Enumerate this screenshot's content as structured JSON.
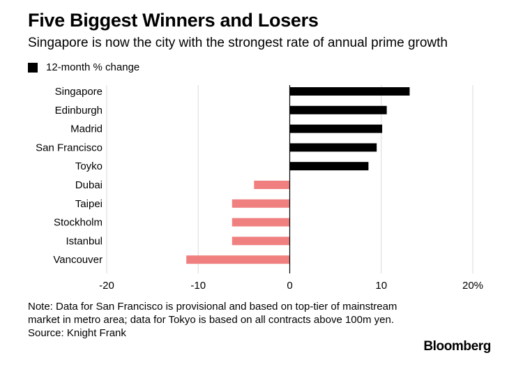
{
  "header": {
    "title": "Five Biggest Winners and Losers",
    "subtitle": "Singapore is now the city with the strongest rate of annual prime growth"
  },
  "legend": {
    "label": "12-month % change"
  },
  "chart_data": {
    "type": "bar",
    "orientation": "horizontal",
    "categories": [
      "Singapore",
      "Edinburgh",
      "Madrid",
      "San Francisco",
      "Toyko",
      "Dubai",
      "Taipei",
      "Stockholm",
      "Istanbul",
      "Vancouver"
    ],
    "series": [
      {
        "name": "12-month % change",
        "values": [
          13.1,
          10.6,
          10.1,
          9.5,
          8.6,
          -3.9,
          -6.3,
          -6.3,
          -6.3,
          -11.3
        ]
      }
    ],
    "xlim": [
      -20,
      20
    ],
    "xticks": [
      -20,
      -10,
      0,
      10,
      20
    ],
    "xtick_labels": [
      "-20",
      "-10",
      "0",
      "10",
      "20%"
    ],
    "colors": {
      "positive": "#000000",
      "negative": "#f07f7f",
      "grid": "#d9d9d9",
      "zero_line": "#000000"
    },
    "gridlines": "vertical"
  },
  "footer": {
    "note": "Note: Data for San Francisco is provisional and based on top-tier of mainstream market in metro area; data for Tokyo is based on all contracts above 100m yen.",
    "source": "Source: Knight Frank",
    "brand": "Bloomberg"
  }
}
